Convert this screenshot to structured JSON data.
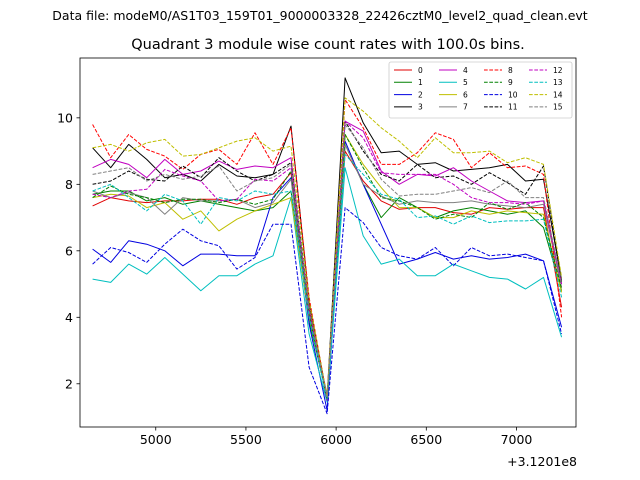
{
  "figure": {
    "suptitle": "Data file: modeM0/AS1T03_159T01_9000003328_22426cztM0_level2_quad_clean.evt",
    "offset_label": "+3.1201e8"
  },
  "chart_data": {
    "type": "line",
    "title": "Quadrant 3 module wise count rates with 100.0s bins.",
    "xlabel": "",
    "ylabel": "",
    "xlim": [
      4580,
      7330
    ],
    "ylim": [
      0.7,
      11.8
    ],
    "xticks": [
      5000,
      5500,
      6000,
      6500,
      7000
    ],
    "yticks": [
      2,
      4,
      6,
      8,
      10
    ],
    "legend_position": "upper right",
    "x": [
      4650,
      4750,
      4850,
      4950,
      5050,
      5150,
      5250,
      5350,
      5450,
      5550,
      5650,
      5750,
      5850,
      5950,
      6050,
      6150,
      6250,
      6350,
      6450,
      6550,
      6650,
      6750,
      6850,
      6950,
      7050,
      7150,
      7250
    ],
    "series": [
      {
        "name": "0",
        "color": "#e00000",
        "dash": "solid",
        "values": [
          7.35,
          7.6,
          7.5,
          7.45,
          7.5,
          7.5,
          7.55,
          7.55,
          7.4,
          7.6,
          7.7,
          8.35,
          4.3,
          1.5,
          9.0,
          8.1,
          7.5,
          7.25,
          7.3,
          7.3,
          7.15,
          7.1,
          7.3,
          7.25,
          7.3,
          7.3,
          4.3
        ]
      },
      {
        "name": "1",
        "color": "#008000",
        "dash": "solid",
        "values": [
          7.7,
          7.8,
          7.8,
          7.5,
          7.6,
          7.4,
          7.5,
          7.4,
          7.3,
          7.2,
          7.3,
          7.8,
          3.9,
          1.6,
          9.2,
          8.0,
          7.0,
          7.6,
          7.3,
          7.0,
          7.2,
          7.3,
          7.2,
          7.1,
          7.2,
          6.7,
          4.8
        ]
      },
      {
        "name": "2",
        "color": "#0000e0",
        "dash": "solid",
        "values": [
          6.05,
          5.65,
          6.3,
          6.2,
          6.0,
          5.55,
          5.9,
          5.9,
          5.85,
          5.85,
          7.6,
          8.2,
          3.8,
          1.2,
          9.3,
          8.0,
          6.8,
          5.6,
          5.75,
          5.95,
          5.75,
          5.85,
          5.75,
          5.8,
          5.9,
          5.7,
          3.7
        ]
      },
      {
        "name": "3",
        "color": "#000000",
        "dash": "solid",
        "values": [
          9.1,
          8.5,
          9.2,
          8.75,
          8.2,
          8.3,
          8.1,
          8.6,
          8.25,
          8.2,
          8.3,
          9.75,
          4.5,
          1.6,
          11.2,
          9.85,
          8.95,
          9.0,
          8.6,
          8.65,
          8.4,
          8.45,
          8.5,
          8.6,
          8.1,
          8.15,
          5.1
        ]
      },
      {
        "name": "4",
        "color": "#c000c0",
        "dash": "solid",
        "values": [
          8.5,
          8.75,
          8.6,
          8.2,
          8.75,
          8.3,
          8.4,
          8.7,
          8.45,
          8.55,
          8.5,
          8.8,
          4.1,
          1.6,
          9.9,
          9.6,
          8.4,
          8.0,
          8.3,
          8.25,
          8.5,
          8.1,
          7.8,
          7.5,
          7.45,
          7.5,
          5.0
        ]
      },
      {
        "name": "5",
        "color": "#00bfbf",
        "dash": "solid",
        "values": [
          5.15,
          5.05,
          5.6,
          5.3,
          5.8,
          5.3,
          4.8,
          5.25,
          5.25,
          5.6,
          5.85,
          7.6,
          3.5,
          1.45,
          8.5,
          6.45,
          5.6,
          5.75,
          5.25,
          5.25,
          5.6,
          5.4,
          5.2,
          5.15,
          4.85,
          5.2,
          3.4
        ]
      },
      {
        "name": "6",
        "color": "#bfbf00",
        "dash": "solid",
        "values": [
          7.6,
          7.7,
          7.65,
          7.3,
          7.45,
          6.95,
          7.2,
          6.6,
          6.95,
          7.2,
          7.4,
          7.6,
          4.0,
          1.6,
          9.5,
          8.6,
          7.9,
          7.3,
          7.3,
          7.0,
          7.0,
          7.2,
          7.1,
          7.2,
          7.15,
          7.1,
          4.75
        ]
      },
      {
        "name": "7",
        "color": "#808080",
        "dash": "solid",
        "values": [
          7.8,
          7.6,
          7.75,
          7.6,
          7.1,
          7.6,
          7.5,
          7.5,
          7.55,
          7.3,
          7.45,
          8.15,
          4.05,
          1.7,
          9.2,
          8.0,
          7.65,
          7.4,
          7.5,
          7.45,
          7.45,
          7.5,
          7.4,
          7.35,
          7.3,
          7.4,
          4.9
        ]
      },
      {
        "name": "8",
        "color": "#ff0000",
        "dash": "dashed",
        "values": [
          9.8,
          8.8,
          9.5,
          9.05,
          8.85,
          8.45,
          8.9,
          9.05,
          8.6,
          9.55,
          8.6,
          9.7,
          4.6,
          1.55,
          10.55,
          9.7,
          8.6,
          8.6,
          8.95,
          9.55,
          9.35,
          8.5,
          8.95,
          8.5,
          8.55,
          8.3,
          4.0
        ]
      },
      {
        "name": "9",
        "color": "#008000",
        "dash": "dashed",
        "values": [
          7.6,
          7.95,
          7.7,
          7.6,
          7.45,
          7.55,
          7.55,
          7.45,
          7.55,
          7.4,
          7.55,
          8.4,
          4.1,
          1.5,
          9.5,
          8.5,
          7.6,
          7.5,
          7.3,
          6.95,
          7.1,
          7.0,
          7.45,
          7.25,
          7.45,
          7.0,
          4.85
        ]
      },
      {
        "name": "10",
        "color": "#0000e0",
        "dash": "dashed",
        "values": [
          5.6,
          6.1,
          5.95,
          5.65,
          6.2,
          6.65,
          6.3,
          6.15,
          5.45,
          5.8,
          6.8,
          6.8,
          2.5,
          1.1,
          7.3,
          6.85,
          6.1,
          5.85,
          5.75,
          6.1,
          5.55,
          6.1,
          5.85,
          5.9,
          5.8,
          5.7,
          3.5
        ]
      },
      {
        "name": "11",
        "color": "#000000",
        "dash": "dashed",
        "values": [
          8.0,
          8.1,
          8.4,
          8.15,
          8.1,
          8.55,
          8.2,
          8.8,
          8.4,
          8.1,
          8.3,
          8.65,
          4.3,
          1.55,
          9.9,
          9.0,
          8.3,
          8.1,
          8.6,
          8.2,
          8.25,
          8.0,
          8.35,
          8.05,
          7.7,
          8.55,
          5.05
        ]
      },
      {
        "name": "12",
        "color": "#c000c0",
        "dash": "dashed",
        "values": [
          7.7,
          7.6,
          7.8,
          7.85,
          8.45,
          8.25,
          8.1,
          7.5,
          7.55,
          8.15,
          8.1,
          8.5,
          4.2,
          1.5,
          9.9,
          9.4,
          8.35,
          8.3,
          8.3,
          8.3,
          8.0,
          7.6,
          7.45,
          7.45,
          7.4,
          7.5,
          5.0
        ]
      },
      {
        "name": "13",
        "color": "#00bfbf",
        "dash": "dashed",
        "values": [
          7.8,
          8.0,
          7.6,
          7.2,
          7.7,
          7.5,
          6.8,
          7.6,
          7.5,
          7.8,
          7.7,
          7.8,
          4.0,
          1.55,
          8.9,
          8.3,
          7.7,
          7.55,
          7.0,
          7.05,
          6.8,
          7.05,
          6.85,
          6.9,
          6.9,
          6.95,
          4.6
        ]
      },
      {
        "name": "14",
        "color": "#bfbf00",
        "dash": "dashed",
        "values": [
          9.1,
          9.2,
          9.0,
          9.25,
          9.35,
          8.85,
          8.9,
          9.1,
          9.3,
          9.4,
          9.0,
          9.15,
          4.5,
          1.6,
          10.6,
          10.2,
          9.7,
          9.3,
          8.8,
          9.4,
          8.95,
          8.95,
          9.0,
          8.65,
          8.8,
          8.6,
          5.2
        ]
      },
      {
        "name": "15",
        "color": "#808080",
        "dash": "dashed",
        "values": [
          8.3,
          8.4,
          8.5,
          8.1,
          8.3,
          8.15,
          8.25,
          8.55,
          7.8,
          8.1,
          8.2,
          8.6,
          4.25,
          1.6,
          9.8,
          9.1,
          8.15,
          7.65,
          7.7,
          7.7,
          7.8,
          7.9,
          7.75,
          8.1,
          7.6,
          7.6,
          5.05
        ]
      }
    ]
  }
}
